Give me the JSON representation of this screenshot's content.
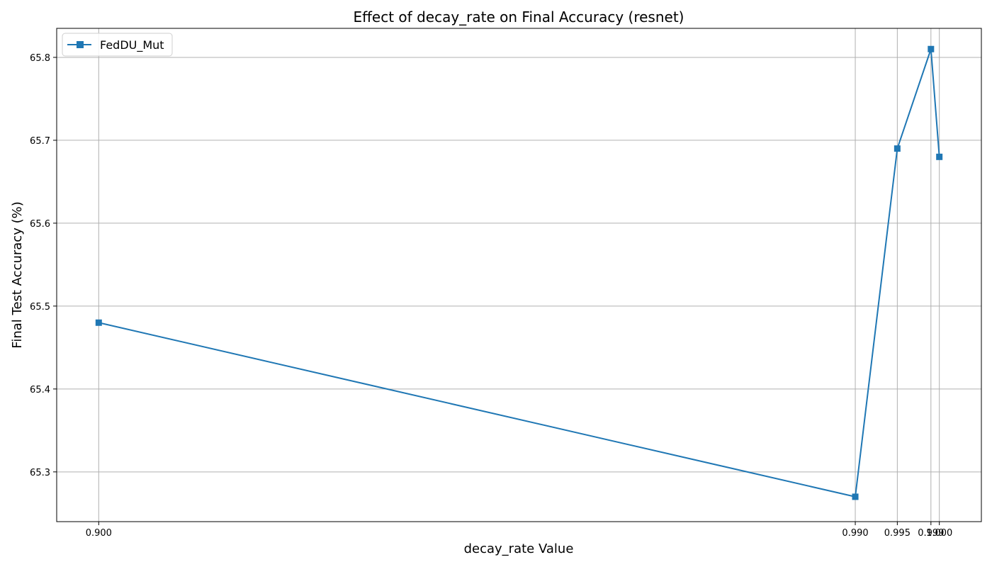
{
  "chart_data": {
    "type": "line",
    "title": "Effect of decay_rate on Final Accuracy (resnet)",
    "xlabel": "decay_rate Value",
    "ylabel": "Final Test Accuracy (%)",
    "x": [
      0.9,
      0.99,
      0.995,
      0.999,
      1.0
    ],
    "x_tick_labels": [
      "0.900",
      "0.990",
      "0.995",
      "0.999",
      "1.000"
    ],
    "y_ticks": [
      65.3,
      65.4,
      65.5,
      65.6,
      65.7,
      65.8
    ],
    "y_tick_labels": [
      "65.3",
      "65.4",
      "65.5",
      "65.6",
      "65.7",
      "65.8"
    ],
    "xlim": [
      0.895,
      1.005
    ],
    "ylim": [
      65.24,
      65.835
    ],
    "grid": true,
    "legend_position": "top-left",
    "series": [
      {
        "name": "FedDU_Mut",
        "values": [
          65.48,
          65.27,
          65.69,
          65.81,
          65.68
        ],
        "color": "#1f77b4",
        "marker": "square"
      }
    ]
  }
}
